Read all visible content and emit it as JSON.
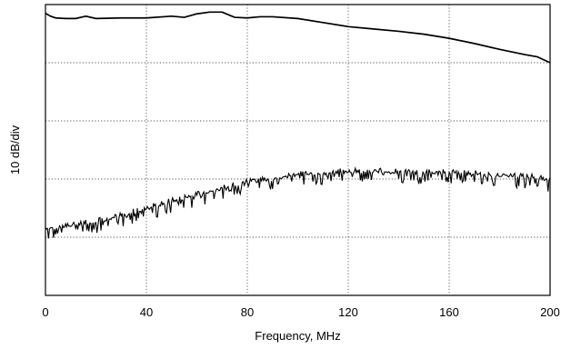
{
  "chart_data": {
    "type": "line",
    "title": "",
    "xlabel": "Frequency, MHz",
    "ylabel": "10 dB/div",
    "xlim": [
      0,
      200
    ],
    "ylim": [
      -50,
      0
    ],
    "y_tick_labels_shown": false,
    "x_ticks": [
      0,
      40,
      80,
      120,
      160,
      200
    ],
    "x_tick_labels": [
      "0",
      "40",
      "80",
      "120",
      "160",
      "200"
    ],
    "y_grid_levels": [
      -10,
      -20,
      -30,
      -40
    ],
    "grid": true,
    "grid_style": "dotted",
    "series": [
      {
        "noisy": false,
        "x": [
          0,
          2,
          4,
          8,
          12,
          16,
          20,
          30,
          40,
          50,
          55,
          60,
          65,
          70,
          75,
          80,
          85,
          90,
          100,
          110,
          120,
          130,
          140,
          150,
          160,
          170,
          180,
          190,
          195,
          200
        ],
        "y": [
          -1.5,
          -2.0,
          -2.3,
          -2.4,
          -2.4,
          -2.0,
          -2.4,
          -2.3,
          -2.3,
          -2.0,
          -2.2,
          -1.6,
          -1.3,
          -1.3,
          -2.2,
          -2.3,
          -2.1,
          -2.1,
          -2.4,
          -3.1,
          -3.8,
          -4.2,
          -4.6,
          -5.1,
          -5.8,
          -6.7,
          -7.7,
          -8.6,
          -9.0,
          -10.0
        ]
      },
      {
        "noisy": true,
        "x": [
          0,
          5,
          10,
          20,
          30,
          40,
          50,
          60,
          70,
          80,
          90,
          100,
          110,
          120,
          130,
          140,
          150,
          160,
          170,
          180,
          190,
          200
        ],
        "y": [
          -38.2,
          -38.3,
          -38.0,
          -37.2,
          -36.2,
          -35.0,
          -33.7,
          -32.5,
          -31.5,
          -30.5,
          -29.8,
          -29.2,
          -28.9,
          -28.6,
          -28.6,
          -28.7,
          -28.8,
          -28.7,
          -28.9,
          -29.2,
          -29.4,
          -30.1
        ]
      }
    ]
  }
}
